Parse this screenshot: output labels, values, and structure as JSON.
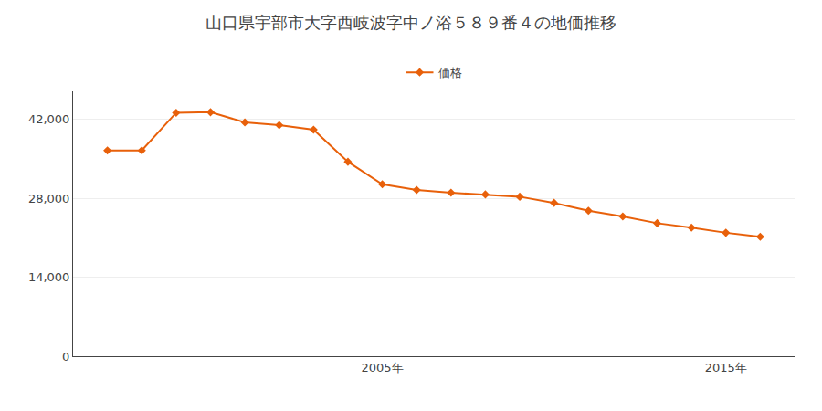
{
  "chart_data": {
    "type": "line",
    "title": "山口県宇部市大字西岐波字中ノ浴５８９番４の地価推移",
    "x": [
      1997,
      1998,
      1999,
      2000,
      2001,
      2002,
      2003,
      2004,
      2005,
      2006,
      2007,
      2008,
      2009,
      2010,
      2011,
      2012,
      2013,
      2014,
      2015,
      2016
    ],
    "series": [
      {
        "name": "価格",
        "color": "#e8600a",
        "marker": "diamond",
        "values": [
          36500,
          36500,
          43200,
          43300,
          41500,
          41000,
          40200,
          34500,
          30500,
          29500,
          29000,
          28700,
          28300,
          27200,
          25800,
          24800,
          23600,
          22800,
          21900,
          21200
        ]
      }
    ],
    "xlim": [
      1996,
      2017
    ],
    "xticks": [
      {
        "value": 2005,
        "label": "2005年"
      },
      {
        "value": 2015,
        "label": "2015年"
      }
    ],
    "ylim": [
      0,
      47000
    ],
    "yticks": [
      0,
      {
        "value": 14000,
        "label": "14,000"
      },
      {
        "value": 28000,
        "label": "28,000"
      },
      {
        "value": 42000,
        "label": "42,000"
      }
    ],
    "grid": "y",
    "legend": "top"
  }
}
